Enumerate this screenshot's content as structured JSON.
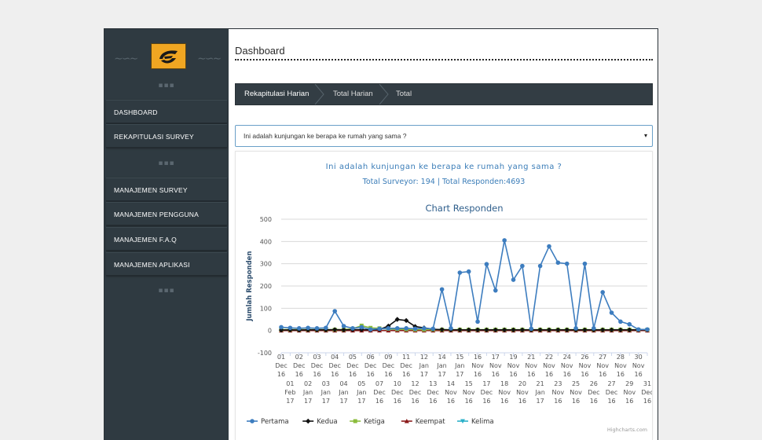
{
  "sidebar": {
    "logo": "logo-icon",
    "menu_group_1": [
      "DASHBOARD",
      "REKAPITULASI SURVEY"
    ],
    "menu_group_2": [
      "MANAJEMEN SURVEY",
      "MANAJEMEN PENGGUNA",
      "MANAJEMEN F.A.Q",
      "MANAJEMEN APLIKASI"
    ]
  },
  "page": {
    "title": "Dashboard"
  },
  "breadcrumb": [
    "Rekapitulasi Harian",
    "Total Harian",
    "Total"
  ],
  "question_select": {
    "value": "Ini adalah kunjungan ke berapa ke rumah yang sama ?",
    "arrow": "▾"
  },
  "summary": {
    "question": "Ini adalah kunjungan ke berapa ke rumah yang sama ?",
    "totals": "Total Surveyor: 194 | Total Responden:4693"
  },
  "credit": "Highcharts.com",
  "chart_data": {
    "type": "line",
    "title": "Chart Responden",
    "ylabel": "Jumlah Responden",
    "xlabel": "",
    "ylim": [
      -100,
      500
    ],
    "yticks": [
      -100,
      0,
      100,
      200,
      300,
      400,
      500
    ],
    "grid": true,
    "legend": "bottom",
    "categories": [
      "01 Dec 16",
      "01 Feb 17",
      "02 Dec 16",
      "02 Jan 17",
      "03 Dec 16",
      "03 Jan 17",
      "04 Dec 16",
      "04 Jan 17",
      "05 Dec 16",
      "05 Jan 17",
      "06 Dec 16",
      "07 Dec 16",
      "09 Dec 16",
      "10 Dec 16",
      "11 Dec 16",
      "12 Dec 16",
      "12 Jan 17",
      "13 Dec 16",
      "14 Jan 17",
      "14 Nov 16",
      "15 Jan 17",
      "15 Nov 16",
      "16 Nov 16",
      "17 Dec 16",
      "17 Nov 16",
      "18 Nov 16",
      "19 Nov 16",
      "20 Nov 16",
      "21 Nov 16",
      "21 Jan 17",
      "22 Nov 16",
      "23 Nov 16",
      "24 Nov 16",
      "25 Nov 16",
      "26 Nov 16",
      "26 Dec 16",
      "27 Nov 16",
      "27 Dec 16",
      "28 Nov 16",
      "29 Nov 16",
      "30 Nov 16",
      "31 Dec 16"
    ],
    "series": [
      {
        "name": "Pertama",
        "color": "#3d7dbf",
        "marker": "circle",
        "values": [
          15,
          12,
          10,
          12,
          10,
          12,
          87,
          20,
          10,
          15,
          5,
          8,
          10,
          10,
          10,
          8,
          10,
          8,
          185,
          10,
          260,
          265,
          40,
          298,
          180,
          405,
          228,
          290,
          8,
          290,
          378,
          305,
          300,
          10,
          300,
          10,
          172,
          80,
          40,
          28,
          5,
          5
        ]
      },
      {
        "name": "Kedua",
        "color": "#111111",
        "marker": "diamond",
        "values": [
          2,
          3,
          2,
          3,
          3,
          3,
          4,
          3,
          4,
          4,
          3,
          5,
          20,
          50,
          45,
          18,
          12,
          6,
          4,
          3,
          3,
          3,
          3,
          3,
          3,
          3,
          3,
          3,
          3,
          3,
          3,
          3,
          3,
          3,
          3,
          3,
          3,
          3,
          3,
          3,
          3,
          3
        ]
      },
      {
        "name": "Ketiga",
        "color": "#8bbc3c",
        "marker": "square",
        "values": [
          4,
          4,
          4,
          4,
          4,
          4,
          4,
          4,
          8,
          22,
          12,
          10,
          8,
          6,
          5,
          4,
          4,
          4,
          4,
          4,
          4,
          4,
          4,
          4,
          4,
          4,
          4,
          4,
          4,
          4,
          4,
          4,
          4,
          4,
          4,
          4,
          4,
          4,
          4,
          4,
          4,
          4
        ]
      },
      {
        "name": "Keempat",
        "color": "#8b1a1a",
        "marker": "triangle",
        "values": [
          0,
          0,
          0,
          0,
          0,
          0,
          0,
          0,
          0,
          0,
          0,
          0,
          0,
          0,
          0,
          0,
          0,
          0,
          0,
          0,
          0,
          0,
          0,
          0,
          0,
          0,
          0,
          0,
          0,
          0,
          0,
          0,
          0,
          0,
          0,
          0,
          0,
          0,
          0,
          0,
          0,
          0
        ]
      },
      {
        "name": "Kelima",
        "color": "#2bb0c9",
        "marker": "triangle-down",
        "values": [
          1,
          1,
          1,
          1,
          1,
          1,
          1,
          1,
          1,
          1,
          1,
          1,
          1,
          1,
          1,
          1,
          1,
          1,
          1,
          1,
          1,
          1,
          1,
          1,
          1,
          1,
          1,
          1,
          1,
          1,
          1,
          1,
          1,
          1,
          1,
          1,
          1,
          1,
          1,
          1,
          1,
          1
        ]
      }
    ]
  }
}
